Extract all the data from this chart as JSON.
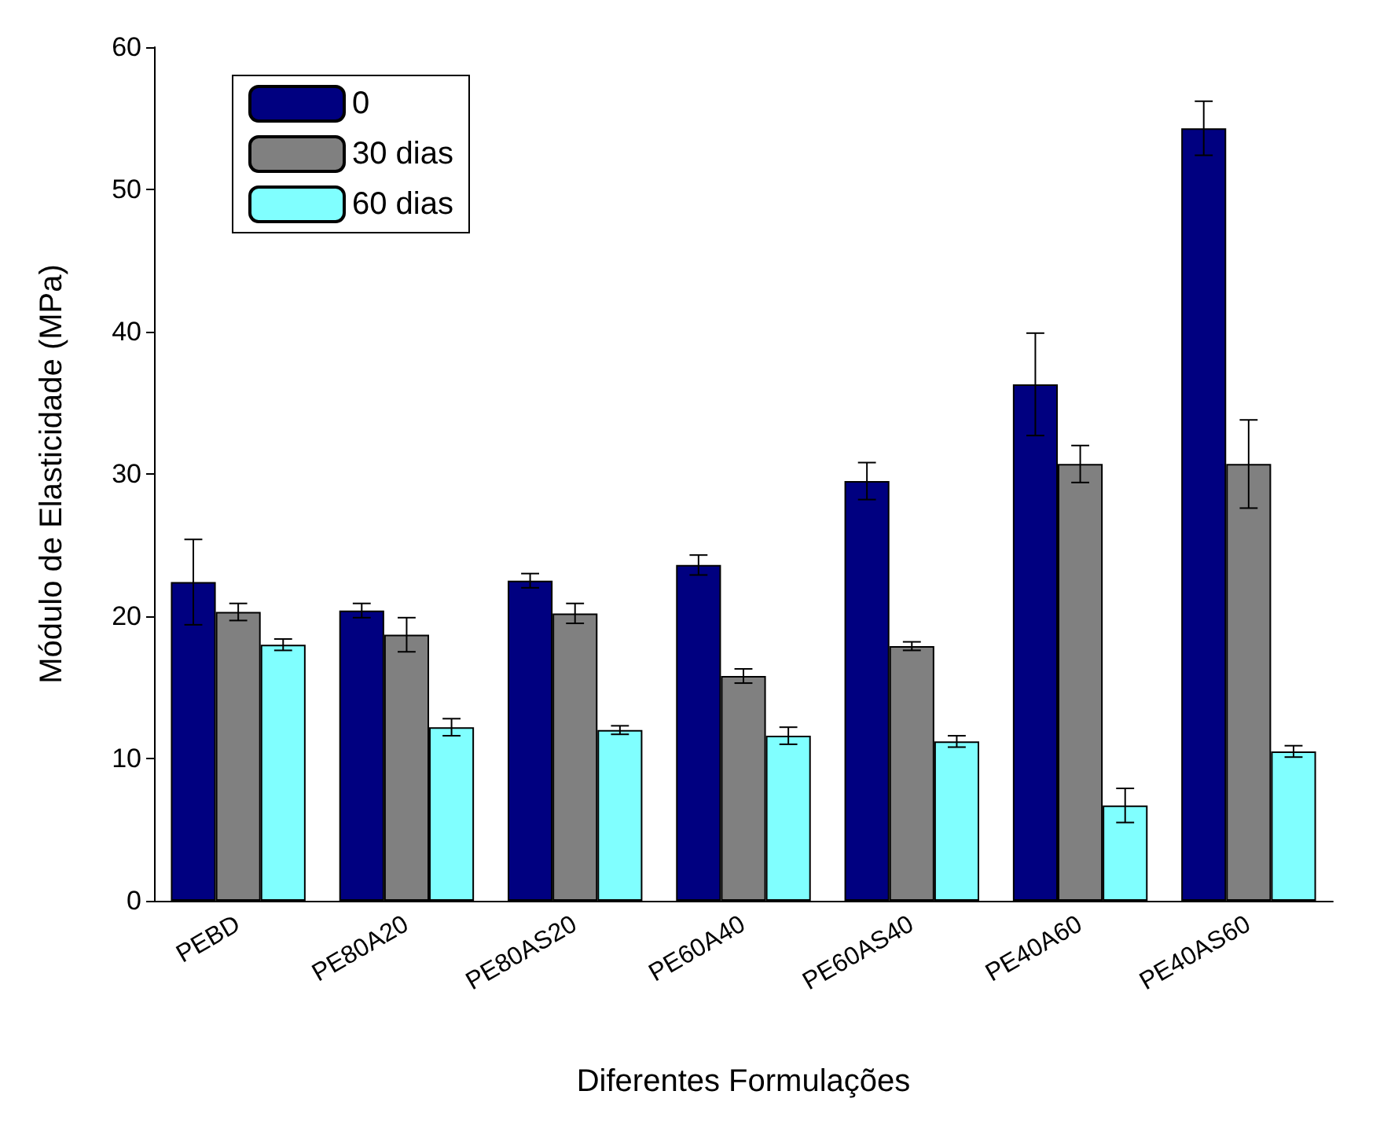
{
  "chart_data": {
    "type": "bar",
    "xlabel": "Diferentes Formulações",
    "ylabel": "Módulo de Elasticidade (MPa)",
    "categories": [
      "PEBD",
      "PE80A20",
      "PE80AS20",
      "PE60A40",
      "PE60AS40",
      "PE40A60",
      "PE40AS60"
    ],
    "series": [
      {
        "name": "0",
        "color": "#000080",
        "values": [
          22.4,
          20.4,
          22.5,
          23.6,
          29.5,
          36.3,
          54.3
        ],
        "errors": [
          3.0,
          0.5,
          0.5,
          0.7,
          1.3,
          3.6,
          1.9
        ]
      },
      {
        "name": "30 dias",
        "color": "#808080",
        "values": [
          20.3,
          18.7,
          20.2,
          15.8,
          17.9,
          30.7,
          30.7
        ],
        "errors": [
          0.6,
          1.2,
          0.7,
          0.5,
          0.3,
          1.3,
          3.1
        ]
      },
      {
        "name": "60 dias",
        "color": "#80ffff",
        "values": [
          18.0,
          12.2,
          12.0,
          11.6,
          11.2,
          6.7,
          10.5
        ],
        "errors": [
          0.4,
          0.6,
          0.3,
          0.6,
          0.4,
          1.2,
          0.4
        ]
      }
    ],
    "ylim": [
      0,
      60
    ],
    "yticks": [
      0,
      10,
      20,
      30,
      40,
      50,
      60
    ],
    "grid": false,
    "legend": "top left"
  }
}
